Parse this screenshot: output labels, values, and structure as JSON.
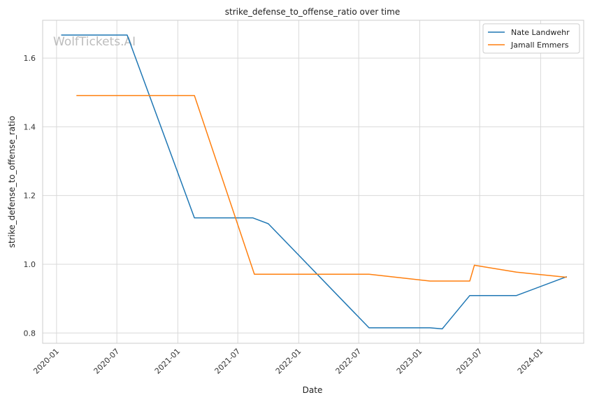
{
  "chart_data": {
    "type": "line",
    "title": "strike_defense_to_offense_ratio over time",
    "xlabel": "Date",
    "ylabel": "strike_defense_to_offense_ratio",
    "watermark": "WolfTickets.AI",
    "x_ticks": [
      "2020-01",
      "2020-07",
      "2021-01",
      "2021-07",
      "2022-01",
      "2022-07",
      "2023-01",
      "2023-07",
      "2024-01"
    ],
    "y_ticks": [
      0.8,
      1.0,
      1.2,
      1.4,
      1.6
    ],
    "xlim": [
      "2019-11-20",
      "2024-05-10"
    ],
    "ylim": [
      0.77,
      1.71
    ],
    "grid": true,
    "legend_position": "top-right",
    "series": [
      {
        "name": "Nate Landwehr",
        "color": "#1f77b4",
        "points": [
          {
            "x": "2020-01-15",
            "y": 1.667
          },
          {
            "x": "2020-08-01",
            "y": 1.667
          },
          {
            "x": "2021-02-20",
            "y": 1.135
          },
          {
            "x": "2021-08-15",
            "y": 1.135
          },
          {
            "x": "2021-10-01",
            "y": 1.118
          },
          {
            "x": "2022-08-01",
            "y": 0.815
          },
          {
            "x": "2023-02-01",
            "y": 0.815
          },
          {
            "x": "2023-03-10",
            "y": 0.812
          },
          {
            "x": "2023-06-01",
            "y": 0.909
          },
          {
            "x": "2023-10-20",
            "y": 0.909
          },
          {
            "x": "2024-03-20",
            "y": 0.964
          }
        ]
      },
      {
        "name": "Jamall Emmers",
        "color": "#ff7f0e",
        "points": [
          {
            "x": "2020-03-01",
            "y": 1.491
          },
          {
            "x": "2021-02-20",
            "y": 1.491
          },
          {
            "x": "2021-08-20",
            "y": 0.971
          },
          {
            "x": "2022-08-01",
            "y": 0.971
          },
          {
            "x": "2023-02-01",
            "y": 0.951
          },
          {
            "x": "2023-06-01",
            "y": 0.951
          },
          {
            "x": "2023-06-15",
            "y": 0.997
          },
          {
            "x": "2023-10-20",
            "y": 0.977
          },
          {
            "x": "2024-03-20",
            "y": 0.962
          }
        ]
      }
    ]
  }
}
